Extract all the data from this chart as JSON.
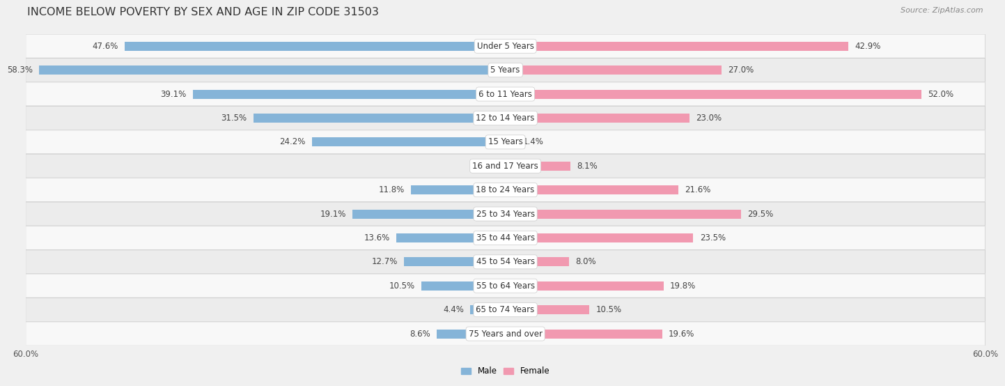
{
  "title": "INCOME BELOW POVERTY BY SEX AND AGE IN ZIP CODE 31503",
  "source": "Source: ZipAtlas.com",
  "categories": [
    "Under 5 Years",
    "5 Years",
    "6 to 11 Years",
    "12 to 14 Years",
    "15 Years",
    "16 and 17 Years",
    "18 to 24 Years",
    "25 to 34 Years",
    "35 to 44 Years",
    "45 to 54 Years",
    "55 to 64 Years",
    "65 to 74 Years",
    "75 Years and over"
  ],
  "male_values": [
    47.6,
    58.3,
    39.1,
    31.5,
    24.2,
    0.0,
    11.8,
    19.1,
    13.6,
    12.7,
    10.5,
    4.4,
    8.6
  ],
  "female_values": [
    42.9,
    27.0,
    52.0,
    23.0,
    1.4,
    8.1,
    21.6,
    29.5,
    23.5,
    8.0,
    19.8,
    10.5,
    19.6
  ],
  "male_color": "#85b4d8",
  "female_color": "#f199b0",
  "male_label": "Male",
  "female_label": "Female",
  "xlim": 60.0,
  "bar_height": 0.38,
  "background_color": "#f0f0f0",
  "row_bg_odd": "#f7f7f7",
  "row_bg_even": "#e8e8e8",
  "title_fontsize": 11.5,
  "label_fontsize": 8.5,
  "value_fontsize": 8.5,
  "axis_label_fontsize": 8.5,
  "source_fontsize": 8.0
}
